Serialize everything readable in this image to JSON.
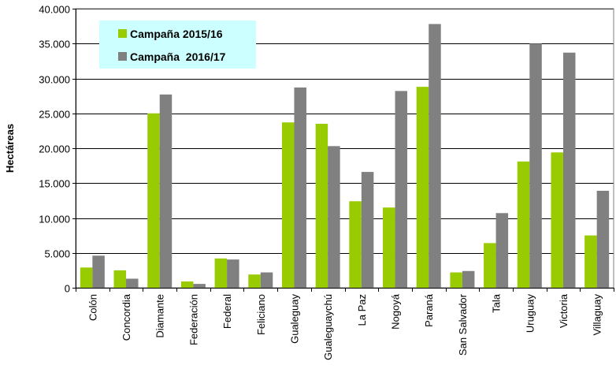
{
  "chart_data": {
    "type": "bar",
    "title": "",
    "xlabel": "",
    "ylabel": "Hectáreas",
    "ylim": [
      0,
      40000
    ],
    "yticks": [
      0,
      5000,
      10000,
      15000,
      20000,
      25000,
      30000,
      35000,
      40000
    ],
    "ytick_labels": [
      "0",
      "5.000",
      "10.000",
      "15.000",
      "20.000",
      "25.000",
      "30.000",
      "35.000",
      "40.000"
    ],
    "grid": true,
    "legend_position": "top-left",
    "categories": [
      "Colón",
      "Concordia",
      "Diamante",
      "Federación",
      "Federal",
      "Feliciano",
      "Gualeguay",
      "Gualeguaychú",
      "La Paz",
      "Nogoyá",
      "Paraná",
      "San Salvador",
      "Tala",
      "Uruguay",
      "Victoria",
      "Villaguay"
    ],
    "series": [
      {
        "name": "Campaña 2015/16",
        "color": "#99cc00",
        "values": [
          2900,
          2500,
          25000,
          900,
          4200,
          1900,
          23700,
          23500,
          12400,
          11500,
          28800,
          2200,
          6400,
          18100,
          19400,
          7500
        ]
      },
      {
        "name": "Campaña  2016/17",
        "color": "#808080",
        "values": [
          4600,
          1300,
          27700,
          550,
          4050,
          2200,
          28700,
          20300,
          16600,
          28200,
          37800,
          2400,
          10700,
          35000,
          33700,
          13900
        ]
      }
    ],
    "legend_background": "#ccffff"
  }
}
